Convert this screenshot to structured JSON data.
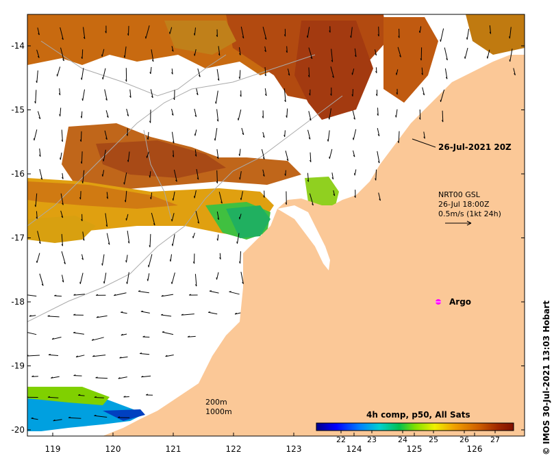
{
  "map": {
    "date_label": "26-Jul-2021 20Z",
    "current_legend": {
      "line1": "NRT00 GSL",
      "line2": "26-Jul 18:00Z",
      "line3": "0.5m/s (1kt 24h)"
    },
    "argo_label": "Argo",
    "depth_contours": [
      "200m",
      "1000m"
    ],
    "colorbar": {
      "title": "4h comp, p50, All Sats",
      "ticks": [
        "22",
        "23",
        "24",
        "25",
        "26",
        "27"
      ],
      "vmin": 21.2,
      "vmax": 27.6,
      "colors": [
        "#00008b",
        "#0000ff",
        "#0080ff",
        "#00d0d0",
        "#00c050",
        "#80e000",
        "#f0f000",
        "#f0a000",
        "#d06000",
        "#a02800",
        "#801000"
      ]
    },
    "credit": "© IMOS 30-Jul-2021 13:03 Hobart",
    "lon_ticks": [
      "119",
      "120",
      "121",
      "122",
      "123",
      "124",
      "125",
      "126"
    ],
    "lat_ticks": [
      "-14",
      "-15",
      "-16",
      "-17",
      "-18",
      "-19",
      "-20"
    ],
    "land_color": "#fbc897"
  }
}
